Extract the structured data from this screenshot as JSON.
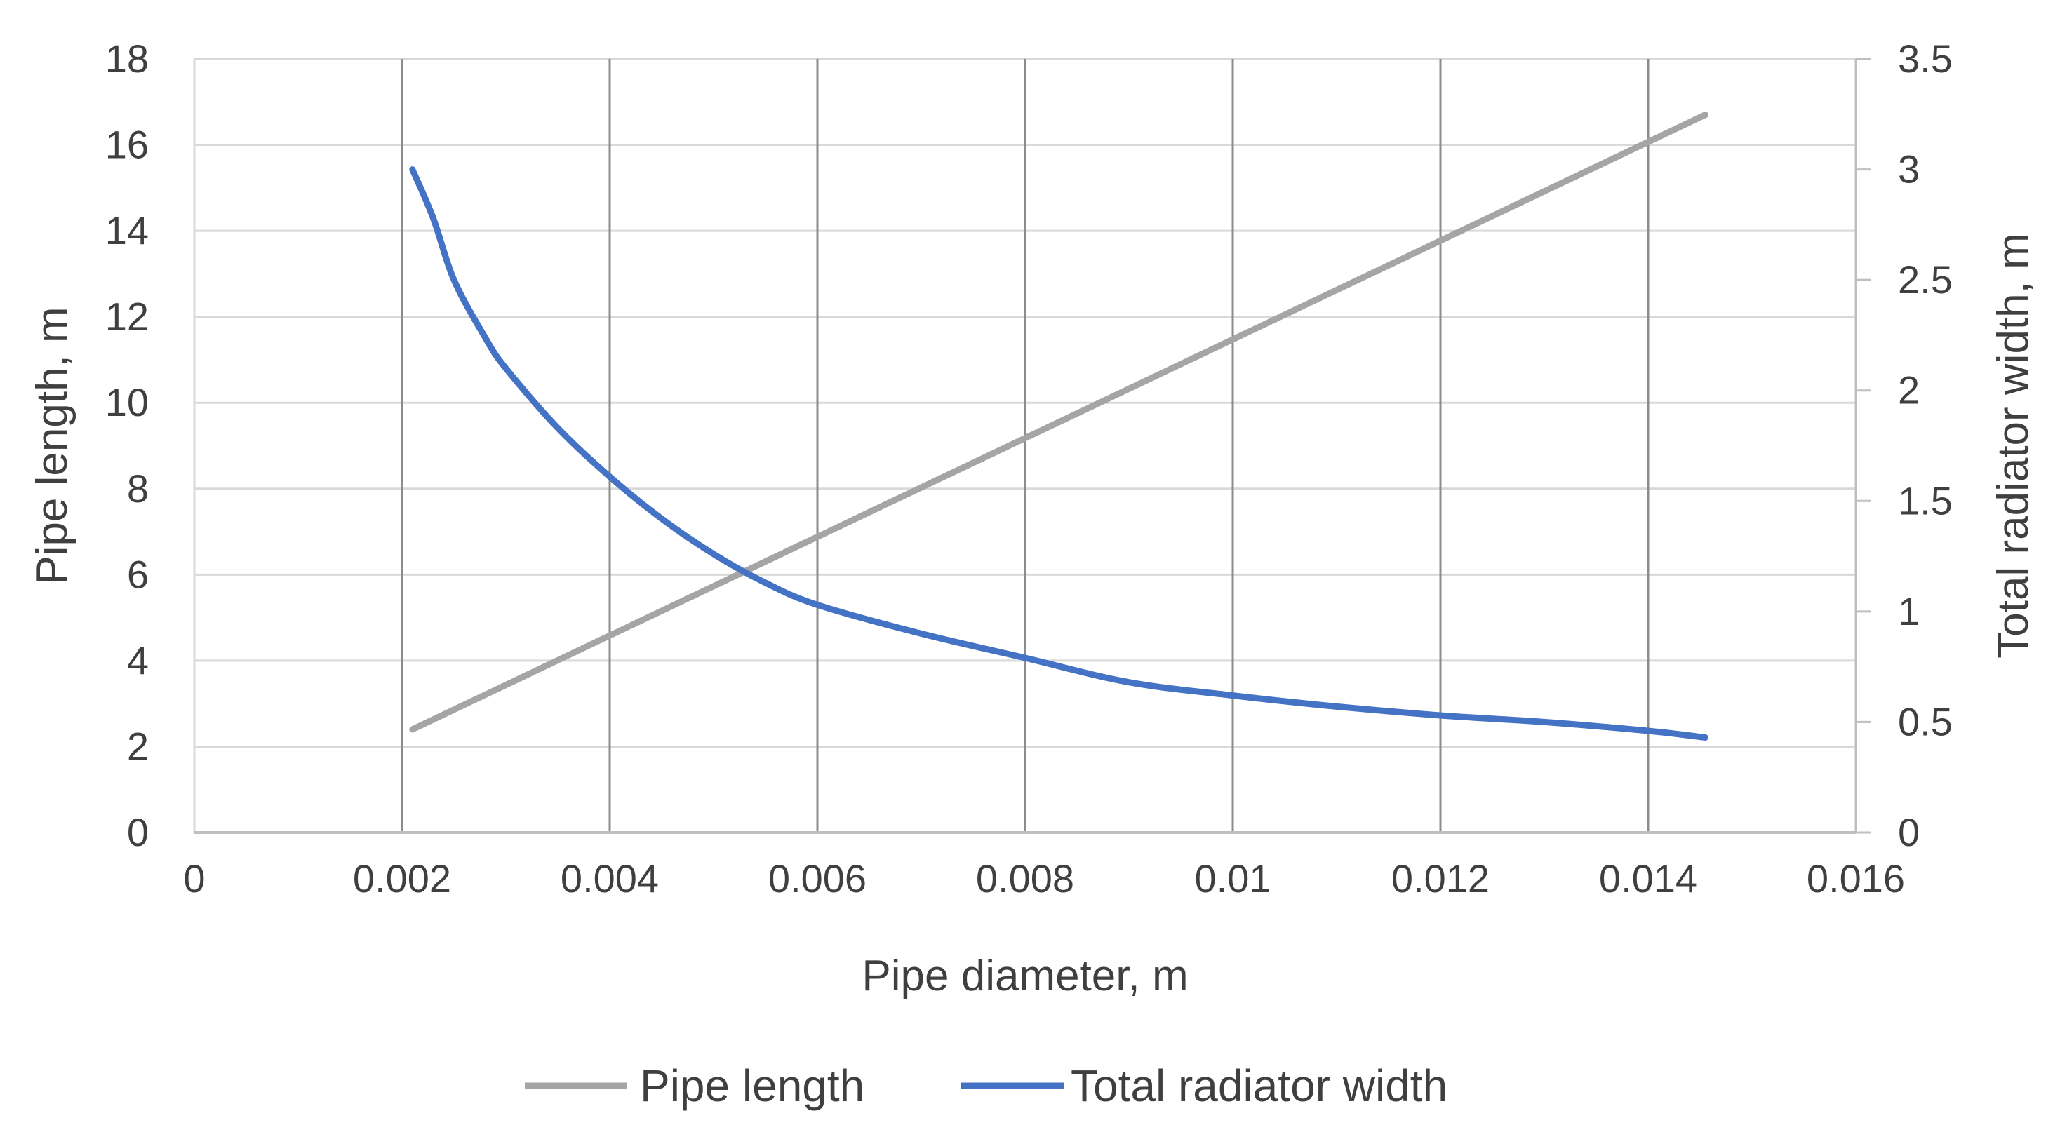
{
  "chart_data": {
    "type": "line",
    "title": "",
    "xlabel": "Pipe diameter, m",
    "ylabel": "Pipe length, m",
    "y2label": "Total radiator width, m",
    "xlim": [
      0,
      0.016
    ],
    "ylim": [
      0,
      18
    ],
    "y2lim": [
      0,
      3.5
    ],
    "xticks": [
      0,
      0.002,
      0.004,
      0.006,
      0.008,
      0.01,
      0.012,
      0.014,
      0.016
    ],
    "xtick_labels": [
      "0",
      "0.002",
      "0.004",
      "0.006",
      "0.008",
      "0.01",
      "0.012",
      "0.014",
      "0.016"
    ],
    "yticks": [
      0,
      2,
      4,
      6,
      8,
      10,
      12,
      14,
      16,
      18
    ],
    "ytick_labels": [
      "0",
      "2",
      "4",
      "6",
      "8",
      "10",
      "12",
      "14",
      "16",
      "18"
    ],
    "y2ticks": [
      0,
      0.5,
      1,
      1.5,
      2,
      2.5,
      3,
      3.5
    ],
    "y2tick_labels": [
      "0",
      "0.5",
      "1",
      "1.5",
      "2",
      "2.5",
      "3",
      "3.5"
    ],
    "grid": true,
    "legend_position": "bottom",
    "series": [
      {
        "name": "Pipe length",
        "axis": "left",
        "color": "#a5a5a5",
        "x": [
          0.0021,
          0.01455
        ],
        "y": [
          2.4,
          16.7
        ]
      },
      {
        "name": "Total radiator width",
        "axis": "right",
        "color": "#4472c4",
        "x": [
          0.0021,
          0.0023,
          0.0025,
          0.0028,
          0.003,
          0.0035,
          0.004,
          0.0045,
          0.005,
          0.0055,
          0.006,
          0.007,
          0.008,
          0.009,
          0.01,
          0.011,
          0.012,
          0.013,
          0.014,
          0.01455
        ],
        "y": [
          3.0,
          2.78,
          2.5,
          2.24,
          2.1,
          1.83,
          1.61,
          1.42,
          1.26,
          1.13,
          1.03,
          0.9,
          0.79,
          0.68,
          0.62,
          0.57,
          0.53,
          0.5,
          0.46,
          0.43
        ]
      }
    ]
  }
}
